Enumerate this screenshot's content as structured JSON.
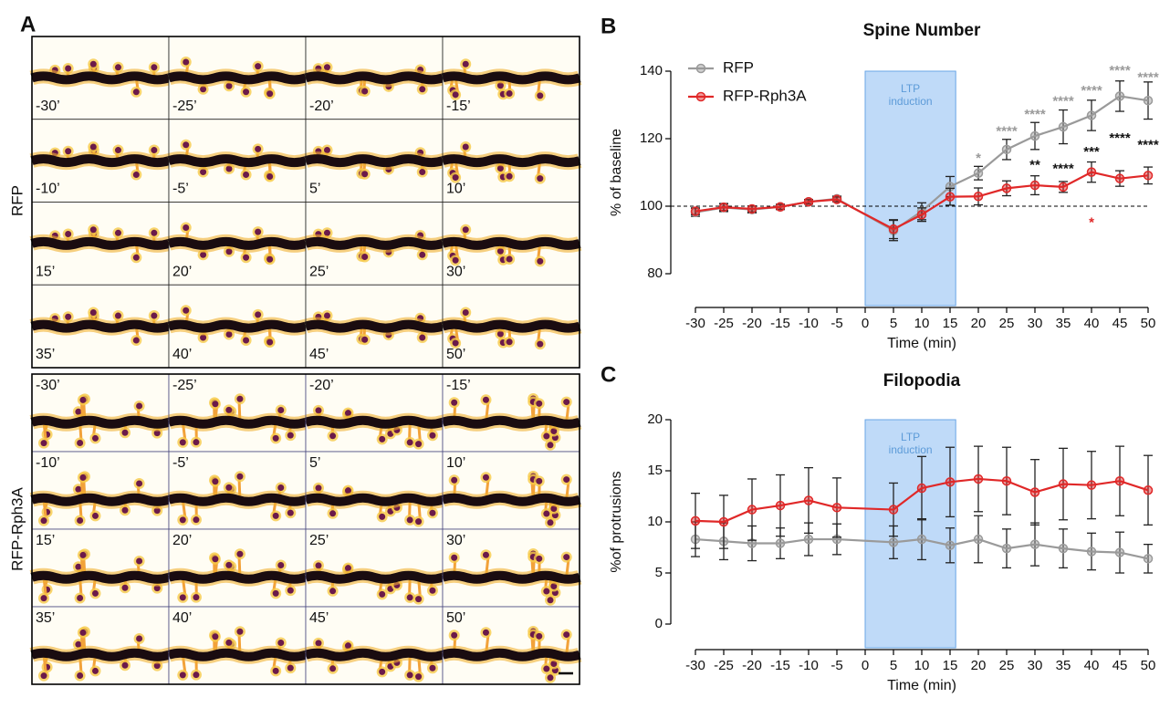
{
  "panel_a": {
    "label": "A",
    "groups": [
      {
        "name": "RFP",
        "frames": [
          "-30’",
          "-25’",
          "-20’",
          "-15’",
          "-10’",
          "-5’",
          "5’",
          "10’",
          "15’",
          "20’",
          "25’",
          "30’",
          "35’",
          "40’",
          "45’",
          "50’"
        ]
      },
      {
        "name": "RFP-Rph3A",
        "frames": [
          "-30’",
          "-25’",
          "-20’",
          "-15’",
          "-10’",
          "-5’",
          "5’",
          "10’",
          "15’",
          "20’",
          "25’",
          "30’",
          "35’",
          "40’",
          "45’",
          "50’"
        ]
      }
    ]
  },
  "chart_data": [
    {
      "type": "line",
      "panel_label": "B",
      "title": "Spine Number",
      "x_label": "Time (min)",
      "y_label": "% of baseline",
      "x": [
        -30,
        -25,
        -20,
        -15,
        -10,
        -5,
        5,
        10,
        15,
        20,
        25,
        30,
        35,
        40,
        45,
        50
      ],
      "xlim": [
        -30,
        50
      ],
      "xticks": [
        -30,
        -25,
        -20,
        -15,
        -10,
        -5,
        0,
        5,
        10,
        15,
        20,
        25,
        30,
        35,
        40,
        45,
        50
      ],
      "ylim": [
        80,
        140
      ],
      "yticks": [
        80,
        100,
        120,
        140
      ],
      "reference_line": 100,
      "legend": "upper left",
      "shaded_region": {
        "xlim": [
          0,
          16
        ],
        "label": "LTP induction",
        "color": "#a9cdf5"
      },
      "series": [
        {
          "name": "RFP",
          "color": "#9a9a9a",
          "values": [
            98.2,
            99.6,
            99.0,
            99.8,
            101.3,
            102.2,
            92.8,
            98.5,
            105.8,
            109.8,
            116.8,
            120.8,
            123.5,
            126.9,
            132.6,
            131.3
          ],
          "errors": [
            1.2,
            1.2,
            1.0,
            0.8,
            0.7,
            0.8,
            3.0,
            2.5,
            3.0,
            2.0,
            3.0,
            4.0,
            5.0,
            4.5,
            4.5,
            5.5
          ]
        },
        {
          "name": "RFP-Rph3A",
          "color": "#e02828",
          "values": [
            98.5,
            99.7,
            99.2,
            99.8,
            101.3,
            102.0,
            93.2,
            97.5,
            102.8,
            102.9,
            105.3,
            106.2,
            105.7,
            110.1,
            108.2,
            109.1
          ],
          "errors": [
            1.0,
            1.0,
            0.9,
            0.7,
            0.6,
            0.7,
            2.8,
            2.0,
            2.5,
            2.5,
            2.2,
            2.8,
            1.6,
            3.0,
            2.3,
            2.5
          ]
        }
      ],
      "annotations": [
        {
          "text": "*",
          "x": 20,
          "y": 114,
          "color": "#9a9a9a"
        },
        {
          "text": "****",
          "x": 25,
          "y": 122,
          "color": "#9a9a9a"
        },
        {
          "text": "****",
          "x": 30,
          "y": 127,
          "color": "#9a9a9a"
        },
        {
          "text": "****",
          "x": 35,
          "y": 131,
          "color": "#9a9a9a"
        },
        {
          "text": "****",
          "x": 40,
          "y": 134,
          "color": "#9a9a9a"
        },
        {
          "text": "****",
          "x": 45,
          "y": 140,
          "color": "#9a9a9a"
        },
        {
          "text": "****",
          "x": 50,
          "y": 138,
          "color": "#9a9a9a"
        },
        {
          "text": "**",
          "x": 30,
          "y": 112,
          "color": "#111111"
        },
        {
          "text": "****",
          "x": 35,
          "y": 111,
          "color": "#111111"
        },
        {
          "text": "***",
          "x": 40,
          "y": 116,
          "color": "#111111"
        },
        {
          "text": "****",
          "x": 45,
          "y": 120,
          "color": "#111111"
        },
        {
          "text": "****",
          "x": 50,
          "y": 118,
          "color": "#111111"
        },
        {
          "text": "*",
          "x": 40,
          "y": 95,
          "color": "#e02828"
        }
      ]
    },
    {
      "type": "line",
      "panel_label": "C",
      "title": "Filopodia",
      "x_label": "Time (min)",
      "y_label": "%of protrusions",
      "x": [
        -30,
        -25,
        -20,
        -15,
        -10,
        -5,
        5,
        10,
        15,
        20,
        25,
        30,
        35,
        40,
        45,
        50
      ],
      "xlim": [
        -30,
        50
      ],
      "xticks": [
        -30,
        -25,
        -20,
        -15,
        -10,
        -5,
        0,
        5,
        10,
        15,
        20,
        25,
        30,
        35,
        40,
        45,
        50
      ],
      "ylim": [
        0,
        20
      ],
      "yticks": [
        0,
        5,
        10,
        15,
        20
      ],
      "shaded_region": {
        "xlim": [
          0,
          16
        ],
        "label": "LTP induction",
        "color": "#a9cdf5"
      },
      "series": [
        {
          "color": "#9a9a9a",
          "values": [
            8.3,
            8.1,
            7.9,
            7.9,
            8.3,
            8.3,
            8.0,
            8.3,
            7.7,
            8.3,
            7.4,
            7.8,
            7.4,
            7.1,
            7.0,
            6.4
          ],
          "errors": [
            1.7,
            1.8,
            1.7,
            1.5,
            1.6,
            1.5,
            1.6,
            2.0,
            1.7,
            2.3,
            1.9,
            2.1,
            1.9,
            1.8,
            2.0,
            1.4
          ]
        },
        {
          "color": "#e02828",
          "values": [
            10.1,
            10.0,
            11.2,
            11.6,
            12.1,
            11.4,
            11.2,
            13.3,
            13.9,
            14.2,
            14.0,
            12.9,
            13.7,
            13.6,
            14.0,
            13.1
          ],
          "errors": [
            2.7,
            2.6,
            3.0,
            3.0,
            3.2,
            2.9,
            2.6,
            3.1,
            3.4,
            3.2,
            3.3,
            3.2,
            3.5,
            3.3,
            3.4,
            3.4
          ]
        }
      ]
    }
  ]
}
